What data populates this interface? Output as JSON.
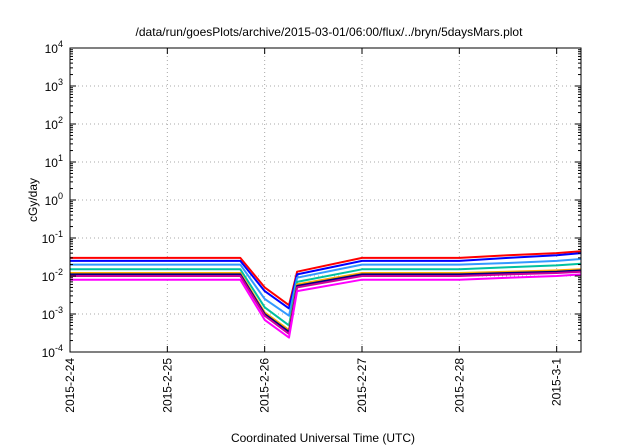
{
  "chart_data": {
    "type": "line",
    "title": "/data/run/goesPlots/archive/2015-03-01/06:00/flux/../bryn/5daysMars.plot",
    "xlabel": "Coordinated Universal Time (UTC)",
    "ylabel": "cGy/day",
    "yscale": "log",
    "ylim": [
      0.0001,
      10000
    ],
    "xlim": [
      "2015-02-24T00:00",
      "2015-03-01T06:00"
    ],
    "grid": true,
    "legend": "none",
    "x_ticks": [
      "2015-2-24",
      "2015-2-25",
      "2015-2-26",
      "2015-2-27",
      "2015-2-28",
      "2015-3-1"
    ],
    "y_ticks": [
      {
        "base": "10",
        "exp": "-4"
      },
      {
        "base": "10",
        "exp": "-3"
      },
      {
        "base": "10",
        "exp": "-2"
      },
      {
        "base": "10",
        "exp": "-1"
      },
      {
        "base": "10",
        "exp": "0"
      },
      {
        "base": "10",
        "exp": "1"
      },
      {
        "base": "10",
        "exp": "2"
      },
      {
        "base": "10",
        "exp": "3"
      },
      {
        "base": "10",
        "exp": "4"
      }
    ],
    "x": [
      "2015-02-24T00:00",
      "2015-02-24T12:00",
      "2015-02-25T00:00",
      "2015-02-25T12:00",
      "2015-02-25T18:00",
      "2015-02-26T00:00",
      "2015-02-26T06:00",
      "2015-02-26T08:00",
      "2015-02-27T00:00",
      "2015-02-27T12:00",
      "2015-02-28T00:00",
      "2015-02-28T12:00",
      "2015-03-01T00:00",
      "2015-03-01T06:00"
    ],
    "series": [
      {
        "color": "#ff0000",
        "values": [
          0.03,
          0.03,
          0.03,
          0.03,
          0.03,
          0.005,
          0.0017,
          0.013,
          0.03,
          0.03,
          0.03,
          0.035,
          0.04,
          0.045
        ]
      },
      {
        "color": "#0000ff",
        "values": [
          0.025,
          0.025,
          0.025,
          0.025,
          0.025,
          0.004,
          0.0014,
          0.011,
          0.025,
          0.025,
          0.025,
          0.03,
          0.035,
          0.04
        ]
      },
      {
        "color": "#3399ff",
        "values": [
          0.02,
          0.02,
          0.02,
          0.02,
          0.02,
          0.0025,
          0.0009,
          0.009,
          0.02,
          0.02,
          0.02,
          0.022,
          0.025,
          0.028
        ]
      },
      {
        "color": "#00c0a0",
        "values": [
          0.015,
          0.015,
          0.015,
          0.015,
          0.015,
          0.0015,
          0.0005,
          0.007,
          0.015,
          0.015,
          0.015,
          0.017,
          0.019,
          0.021
        ]
      },
      {
        "color": "#ffaa00",
        "values": [
          0.012,
          0.012,
          0.012,
          0.012,
          0.012,
          0.0011,
          0.00038,
          0.006,
          0.012,
          0.012,
          0.012,
          0.013,
          0.014,
          0.015
        ]
      },
      {
        "color": "#000080",
        "values": [
          0.011,
          0.011,
          0.011,
          0.011,
          0.011,
          0.001,
          0.00034,
          0.0055,
          0.011,
          0.011,
          0.011,
          0.012,
          0.013,
          0.014
        ]
      },
      {
        "color": "#cc0099",
        "values": [
          0.01,
          0.01,
          0.01,
          0.01,
          0.01,
          0.0009,
          0.0003,
          0.005,
          0.01,
          0.01,
          0.01,
          0.011,
          0.012,
          0.013
        ]
      },
      {
        "color": "#ff00ff",
        "values": [
          0.008,
          0.008,
          0.008,
          0.008,
          0.008,
          0.0007,
          0.00024,
          0.004,
          0.008,
          0.008,
          0.008,
          0.009,
          0.01,
          0.011
        ]
      }
    ]
  }
}
